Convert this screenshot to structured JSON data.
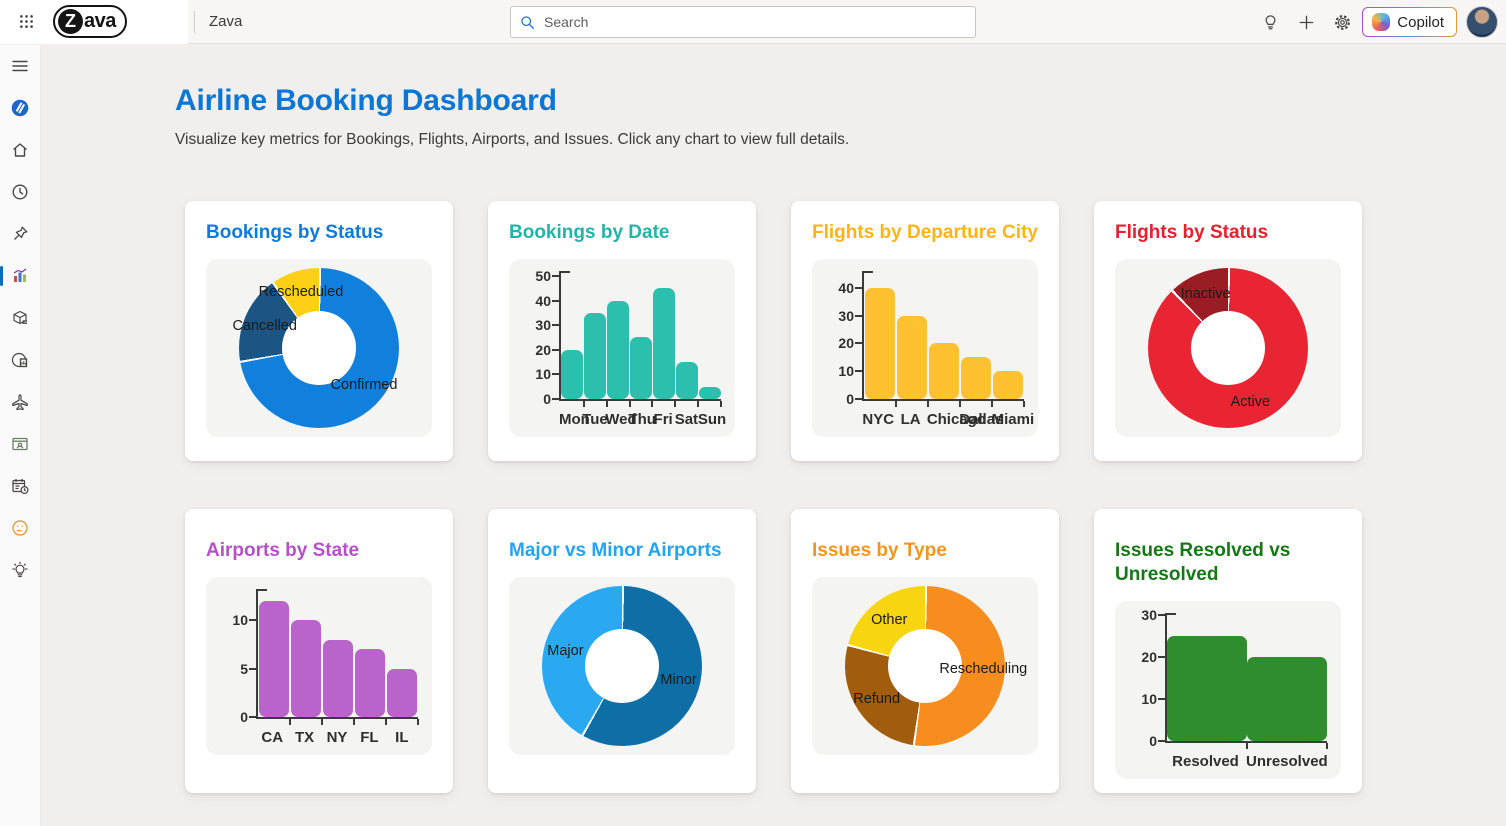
{
  "topbar": {
    "logo_text": "Zava",
    "app_name": "Zava",
    "search_placeholder": "Search",
    "copilot_label": "Copilot"
  },
  "sidebar": {
    "icons": [
      "menu",
      "zava-app",
      "home",
      "recent",
      "pinned",
      "dashboards-selected",
      "orders",
      "web-reports",
      "flights",
      "contacts",
      "schedule",
      "feedback",
      "ideas"
    ],
    "selected": "dashboards-selected",
    "accent_color": "#0f6cbd"
  },
  "page": {
    "title": "Airline Booking Dashboard",
    "subtitle": "Visualize key metrics for Bookings, Flights, Airports, and Issues. Click any chart to view full details."
  },
  "chart_data": [
    {
      "type": "donut",
      "title": "Bookings by Status",
      "title_color": "#0f7ad8",
      "labels": [
        "Confirmed",
        "Cancelled",
        "Rescheduled"
      ],
      "values": [
        72,
        18,
        10
      ],
      "colors": [
        "#1180dc",
        "#1c5583",
        "#fdd017"
      ],
      "legend": "inside-labels"
    },
    {
      "type": "bar",
      "title": "Bookings by Date",
      "title_color": "#24b3a8",
      "categories": [
        "Mon",
        "Tue",
        "Wed",
        "Thu",
        "Fri",
        "Sat",
        "Sun"
      ],
      "values": [
        20,
        35,
        40,
        25,
        45,
        15,
        5
      ],
      "bar_color": "#2dbfae",
      "yticks": [
        0,
        10,
        20,
        30,
        40,
        50
      ],
      "ylim": [
        0,
        53
      ],
      "grid": false
    },
    {
      "type": "bar",
      "title": "Flights by Departure City",
      "title_color": "#fdb515",
      "categories": [
        "NYC",
        "LA",
        "Chicago",
        "Dallas",
        "Miami"
      ],
      "values": [
        40,
        30,
        20,
        15,
        10
      ],
      "bar_color": "#fdc131",
      "yticks": [
        0,
        10,
        20,
        30,
        40
      ],
      "ylim": [
        0,
        47
      ],
      "grid": false
    },
    {
      "type": "donut",
      "title": "Flights by Status",
      "title_color": "#e6202e",
      "labels": [
        "Active",
        "Inactive"
      ],
      "values": [
        87.5,
        12.5
      ],
      "colors": [
        "#e92433",
        "#9a1d24"
      ],
      "legend": "inside-labels"
    },
    {
      "type": "bar",
      "title": "Airports by State",
      "title_color": "#b650c8",
      "categories": [
        "CA",
        "TX",
        "NY",
        "FL",
        "IL"
      ],
      "values": [
        12,
        10,
        8,
        7,
        5
      ],
      "bar_color": "#b964cb",
      "yticks": [
        0,
        5,
        10
      ],
      "ylim": [
        0,
        13.5
      ],
      "grid": false
    },
    {
      "type": "donut",
      "title": "Major vs Minor Airports",
      "title_color": "#23a3f5",
      "labels": [
        "Minor",
        "Major"
      ],
      "values": [
        58,
        42
      ],
      "colors": [
        "#0e6fa6",
        "#2aa9f1"
      ],
      "legend": "inside-labels"
    },
    {
      "type": "donut",
      "title": "Issues by Type",
      "title_color": "#f7941e",
      "labels": [
        "Rescheduling",
        "Refund",
        "Other"
      ],
      "values": [
        52,
        27,
        21
      ],
      "colors": [
        "#f78d1e",
        "#a15c0d",
        "#f7d511"
      ],
      "legend": "inside-labels"
    },
    {
      "type": "bar",
      "title": "Issues Resolved vs Unresolved",
      "title_color": "#157815",
      "categories": [
        "Resolved",
        "Unresolved"
      ],
      "values": [
        25,
        20
      ],
      "bar_color": "#2f8d30",
      "yticks": [
        0,
        10,
        20,
        30
      ],
      "ylim": [
        0,
        31
      ],
      "grid": false
    }
  ]
}
